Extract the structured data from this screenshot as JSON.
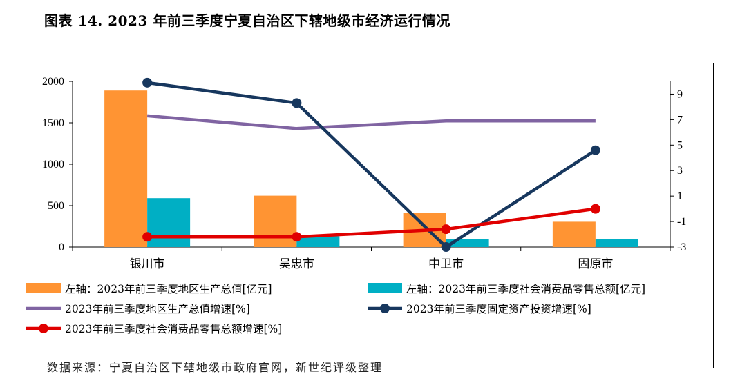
{
  "page": {
    "title": "图表 14. 2023 年前三季度宁夏自治区下辖地级市经济运行情况",
    "source": "数据来源：宁夏自治区下辖地级市政府官网，新世纪评级整理"
  },
  "chart_data": {
    "type": "bar",
    "categories": [
      "银川市",
      "吴忠市",
      "中卫市",
      "固原市"
    ],
    "left_axis": {
      "ylim": [
        0,
        2000
      ],
      "ticks": [
        0,
        500,
        1000,
        1500,
        2000
      ]
    },
    "right_axis": {
      "ylim": [
        -3,
        10
      ],
      "ticks": [
        -3,
        -1,
        1,
        3,
        5,
        7,
        9
      ]
    },
    "series": [
      {
        "name": "左轴：2023年前三季度地区生产总值[亿元]",
        "kind": "bar",
        "axis": "left",
        "color": "#FF9433",
        "values": [
          1890,
          620,
          415,
          305
        ]
      },
      {
        "name": "左轴：2023年前三季度社会消费品零售总额[亿元]",
        "kind": "bar",
        "axis": "left",
        "color": "#00AFC4",
        "values": [
          590,
          130,
          100,
          95
        ]
      },
      {
        "name": "2023年前三季度地区生产总值增速[%]",
        "kind": "line",
        "axis": "right",
        "color": "#8064A2",
        "values": [
          7.3,
          6.3,
          6.9,
          6.9
        ]
      },
      {
        "name": "2023年前三季度固定资产投资增速[%]",
        "kind": "line-marker",
        "axis": "right",
        "color": "#17375E",
        "values": [
          9.9,
          8.3,
          -3.0,
          4.6
        ]
      },
      {
        "name": "2023年前三季度社会消费品零售总额增速[%]",
        "kind": "line-marker",
        "axis": "right",
        "color": "#E00000",
        "values": [
          -2.2,
          -2.2,
          -1.6,
          0.0
        ]
      }
    ]
  }
}
